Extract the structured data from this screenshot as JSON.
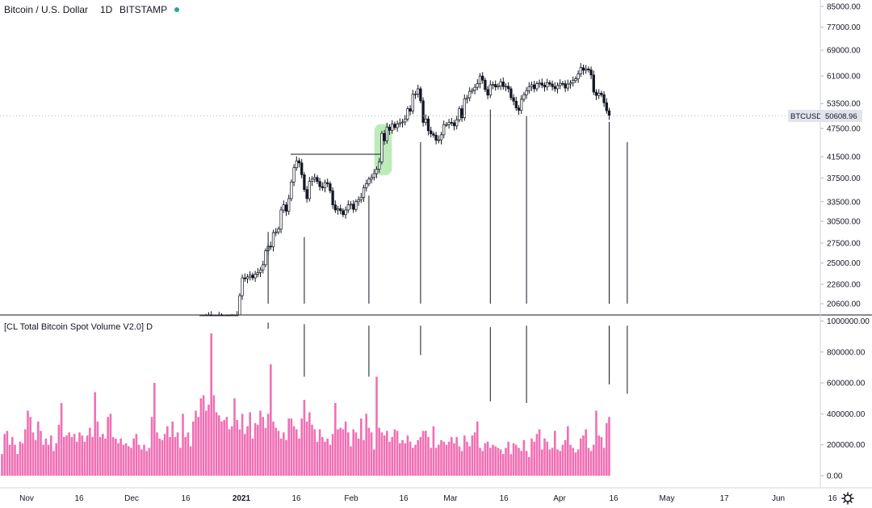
{
  "legend": {
    "symbol_name": "Bitcoin / U.S. Dollar",
    "interval": "1D",
    "exchange": "BITSTAMP",
    "status_color": "#26a69a"
  },
  "indicator": {
    "title": "[CL Total Bitcoin Spot Volume V2.0] D"
  },
  "price_tag": {
    "symbol": "BTCUSD",
    "value": "50608.96",
    "value_num": 50608.96
  },
  "settings_icon": "gear-icon",
  "colors": {
    "volume_bar": "#f06fb4",
    "candle": "#131722",
    "highlight": "#a5e6a0",
    "price_tag_bg": "#e0e3eb"
  },
  "chart_data": [
    {
      "type": "candlestick",
      "title": "Bitcoin / U.S. Dollar",
      "scale": "log",
      "y_ticks": [
        {
          "value": 85000,
          "label": "85000.00"
        },
        {
          "value": 77000,
          "label": "77000.00"
        },
        {
          "value": 69000,
          "label": "69000.00"
        },
        {
          "value": 61000,
          "label": "61000.00"
        },
        {
          "value": 53500,
          "label": "53500.00"
        },
        {
          "value": 47500,
          "label": "47500.00"
        },
        {
          "value": 41500,
          "label": "41500.00"
        },
        {
          "value": 37500,
          "label": "37500.00"
        },
        {
          "value": 33500,
          "label": "33500.00"
        },
        {
          "value": 30500,
          "label": "30500.00"
        },
        {
          "value": 27500,
          "label": "27500.00"
        },
        {
          "value": 25000,
          "label": "25000.00"
        },
        {
          "value": 22600,
          "label": "22600.00"
        },
        {
          "value": 20600,
          "label": "20600.00"
        }
      ],
      "x_ticks": [
        "Nov",
        "16",
        "Dec",
        "16",
        "2021",
        "16",
        "Feb",
        "16",
        "Mar",
        "16",
        "Apr",
        "16",
        "May",
        "17",
        "Jun",
        "16"
      ],
      "close_series": [
        16000,
        17300,
        19200,
        19500,
        19000,
        19100,
        19200,
        19400,
        19100,
        19150,
        19050,
        19000,
        19200,
        19300,
        19500,
        21400,
        23300,
        23200,
        23400,
        23600,
        23300,
        23700,
        23900,
        24200,
        24800,
        26500,
        27100,
        27000,
        28900,
        29000,
        29400,
        32200,
        33000,
        32000,
        34000,
        36800,
        39400,
        40700,
        40300,
        38100,
        35500,
        34000,
        36900,
        37300,
        37600,
        36900,
        36000,
        35800,
        36700,
        36500,
        35300,
        33000,
        32200,
        32400,
        32100,
        31500,
        32200,
        33000,
        33100,
        32300,
        33500,
        33800,
        34200,
        35800,
        36500,
        37300,
        37600,
        38300,
        39100,
        40500,
        46400,
        44800,
        47800,
        47100,
        48500,
        47700,
        48500,
        48800,
        49000,
        49700,
        52200,
        51600,
        55900,
        56000,
        57400,
        54200,
        48900,
        49700,
        47000,
        46300,
        46000,
        44900,
        45000,
        46100,
        48400,
        48400,
        48900,
        48800,
        48100,
        49500,
        52200,
        50000,
        54700,
        55000,
        56700,
        57000,
        57800,
        58800,
        61000,
        59800,
        57200,
        55700,
        58500,
        58600,
        57900,
        58200,
        59300,
        58000,
        58100,
        57400,
        55000,
        54100,
        52400,
        51800,
        54600,
        55800,
        56900,
        58000,
        58500,
        57400,
        58800,
        59000,
        58400,
        57900,
        59100,
        58700,
        58000,
        57400,
        58300,
        58900,
        58800,
        57600,
        58700,
        59000,
        59700,
        60200,
        61600,
        63500,
        62700,
        63100,
        62800,
        61300,
        56500,
        55600,
        56200,
        55800,
        53700,
        51700,
        50600
      ],
      "annotations": [
        {
          "type": "horizontal_ray",
          "y": 42000
        },
        {
          "type": "highlight",
          "y_low": 38000,
          "y_high": 48500
        }
      ]
    },
    {
      "type": "bar",
      "title": "[CL Total Bitcoin Spot Volume V2.0] D",
      "ylim": [
        -40000,
        1000000
      ],
      "y_ticks": [
        {
          "value": 1000000,
          "label": "1000000.00"
        },
        {
          "value": 800000,
          "label": "800000.00"
        },
        {
          "value": 600000,
          "label": "600000.00"
        },
        {
          "value": 400000,
          "label": "400000.00"
        },
        {
          "value": 200000,
          "label": "200000.00"
        },
        {
          "value": 0,
          "label": "0.00"
        }
      ],
      "values": [
        140000,
        270000,
        290000,
        200000,
        250000,
        200000,
        140000,
        220000,
        210000,
        300000,
        420000,
        380000,
        280000,
        230000,
        350000,
        290000,
        200000,
        240000,
        200000,
        260000,
        160000,
        210000,
        330000,
        470000,
        250000,
        260000,
        280000,
        250000,
        270000,
        220000,
        280000,
        260000,
        220000,
        260000,
        310000,
        250000,
        540000,
        350000,
        250000,
        270000,
        240000,
        380000,
        400000,
        250000,
        240000,
        210000,
        240000,
        200000,
        210000,
        190000,
        180000,
        240000,
        270000,
        200000,
        170000,
        200000,
        160000,
        180000,
        380000,
        600000,
        280000,
        240000,
        230000,
        270000,
        320000,
        250000,
        350000,
        250000,
        280000,
        180000,
        400000,
        250000,
        280000,
        190000,
        350000,
        420000,
        380000,
        500000,
        520000,
        420000,
        460000,
        920000,
        520000,
        410000,
        390000,
        350000,
        360000,
        380000,
        300000,
        320000,
        500000,
        360000,
        300000,
        400000,
        270000,
        320000,
        410000,
        240000,
        340000,
        330000,
        420000,
        380000,
        310000,
        400000,
        720000,
        350000,
        310000,
        290000,
        240000,
        280000,
        230000,
        370000,
        370000,
        320000,
        300000,
        240000,
        370000,
        490000,
        350000,
        410000,
        330000,
        300000,
        220000,
        300000,
        250000,
        220000,
        240000,
        200000,
        270000,
        470000,
        300000,
        310000,
        300000,
        350000,
        280000,
        190000,
        300000,
        280000,
        240000,
        370000,
        230000,
        400000,
        310000,
        280000,
        170000,
        640000,
        310000,
        280000,
        260000,
        290000,
        220000,
        250000,
        300000,
        290000,
        210000,
        230000,
        210000,
        260000,
        220000,
        180000,
        200000,
        230000,
        250000,
        290000,
        290000,
        250000,
        180000,
        320000,
        180000,
        200000,
        230000,
        220000,
        200000,
        220000,
        250000,
        210000,
        250000,
        190000,
        160000,
        260000,
        220000,
        190000,
        260000,
        280000,
        350000,
        180000,
        160000,
        210000,
        220000,
        180000,
        200000,
        190000,
        180000,
        170000,
        140000,
        180000,
        220000,
        140000,
        210000,
        200000,
        180000,
        160000,
        230000,
        160000,
        120000,
        240000,
        220000,
        270000,
        300000,
        170000,
        240000,
        220000,
        170000,
        180000,
        290000,
        170000,
        160000,
        200000,
        230000,
        320000,
        200000,
        180000,
        150000,
        170000,
        240000,
        260000,
        300000,
        180000,
        160000,
        200000,
        420000,
        260000,
        250000,
        180000,
        340000,
        380000
      ],
      "signal_lines": [
        {
          "price_top": 29000,
          "price_bottom": 20600,
          "vol_top": 990000,
          "vol_bottom": 950000
        },
        {
          "price_top": 28300,
          "price_bottom": 20600,
          "vol_top": 980000,
          "vol_bottom": 640000
        },
        {
          "price_top": 34500,
          "price_bottom": 20600,
          "vol_top": 970000,
          "vol_bottom": 640000
        },
        {
          "price_top": 44500,
          "price_bottom": 20600,
          "vol_top": 970000,
          "vol_bottom": 780000
        },
        {
          "price_top": 52000,
          "price_bottom": 20600,
          "vol_top": 960000,
          "vol_bottom": 480000
        },
        {
          "price_top": 50500,
          "price_bottom": 20600,
          "vol_top": 970000,
          "vol_bottom": 470000
        },
        {
          "price_top": 49000,
          "price_bottom": 20600,
          "vol_top": 970000,
          "vol_bottom": 590000
        },
        {
          "price_top": 44500,
          "price_bottom": 20600,
          "vol_top": 970000,
          "vol_bottom": 530000
        }
      ]
    }
  ]
}
